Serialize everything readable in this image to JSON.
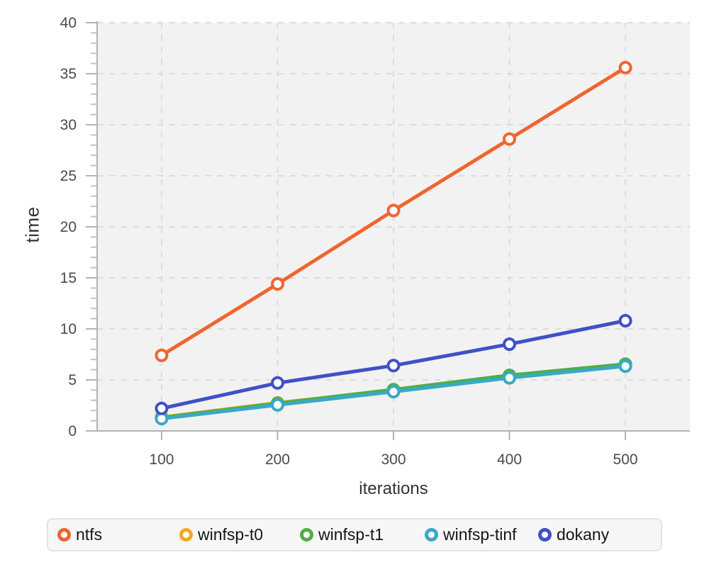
{
  "chart_data": {
    "type": "line",
    "title": "",
    "xlabel": "iterations",
    "ylabel": "time",
    "x": [
      100,
      200,
      300,
      400,
      500
    ],
    "xlim": [
      44.4,
      555.6
    ],
    "ylim": [
      0,
      40
    ],
    "y_major_ticks": [
      0,
      5,
      10,
      15,
      20,
      25,
      30,
      35,
      40
    ],
    "y_minor_step": 1,
    "x_tick_labels": [
      "100",
      "200",
      "300",
      "400",
      "500"
    ],
    "y_tick_labels": [
      "0",
      "5",
      "10",
      "15",
      "20",
      "25",
      "30",
      "35",
      "40"
    ],
    "grid": "dashed horizontal and vertical at major ticks",
    "legend_position": "bottom",
    "series": [
      {
        "name": "ntfs",
        "color": "#f0652f",
        "values": [
          7.4,
          14.4,
          21.6,
          28.6,
          35.6
        ]
      },
      {
        "name": "winfsp-t0",
        "color": "#f5a81f",
        "values": [
          1.35,
          2.75,
          4.0,
          5.35,
          6.5
        ]
      },
      {
        "name": "winfsp-t1",
        "color": "#4fae49",
        "values": [
          1.3,
          2.7,
          4.05,
          5.45,
          6.55
        ]
      },
      {
        "name": "winfsp-tinf",
        "color": "#39a9c6",
        "values": [
          1.2,
          2.55,
          3.85,
          5.2,
          6.35
        ]
      },
      {
        "name": "dokany",
        "color": "#3f51c7",
        "values": [
          2.2,
          4.7,
          6.4,
          8.5,
          10.8
        ]
      }
    ]
  },
  "style": {
    "plot_background": "#f2f2f2",
    "gridline_color": "#dcdcdc",
    "axis_color": "#b3b3b3",
    "minor_tick_color": "#c2c2c2",
    "tick_label_color": "#4a4a4a",
    "axis_title_color": "#333333",
    "legend_text_color": "#161616",
    "marker_fill": "#ffffff"
  }
}
